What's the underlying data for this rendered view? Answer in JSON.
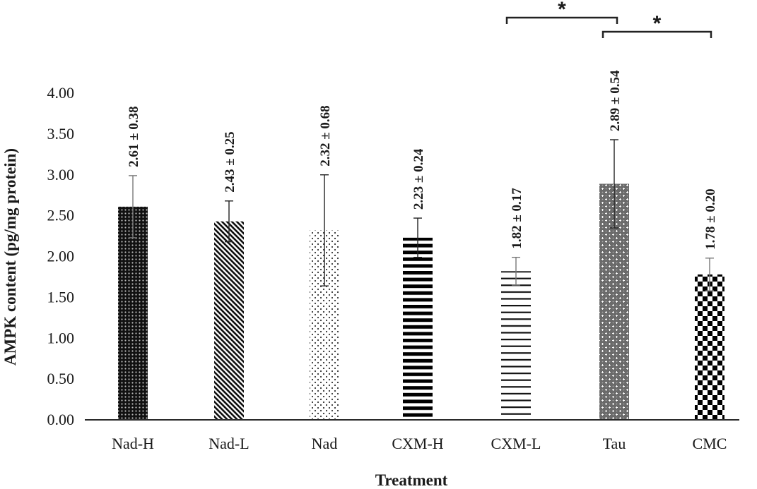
{
  "chart_data": {
    "type": "bar",
    "title": "",
    "xlabel": "Treatment",
    "ylabel": "AMPK content (pg/mg protein)",
    "ylim": [
      0,
      4
    ],
    "yticks": [
      "0.00",
      "0.50",
      "1.00",
      "1.50",
      "2.00",
      "2.50",
      "3.00",
      "3.50",
      "4.00"
    ],
    "ytick_values": [
      0,
      0.5,
      1,
      1.5,
      2,
      2.5,
      3,
      3.5,
      4
    ],
    "grid": false,
    "legend": "none",
    "categories": [
      "Nad-H",
      "Nad-L",
      "Nad",
      "CXM-H",
      "CXM-L",
      "Tau",
      "CMC"
    ],
    "values": [
      2.61,
      2.43,
      2.32,
      2.23,
      1.82,
      2.89,
      1.78
    ],
    "errors": [
      0.38,
      0.25,
      0.68,
      0.24,
      0.17,
      0.54,
      0.2
    ],
    "data_labels": [
      "2.61 ± 0.38",
      "2.43 ± 0.25",
      "2.32 ± 0.68",
      "2.23 ± 0.24",
      "1.82 ± 0.17",
      "2.89 ± 0.54",
      "1.78 ± 0.20"
    ],
    "patterns": [
      "dense-dots-dark",
      "diagonal-stripes",
      "sparse-dots",
      "thick-horizontal-lines",
      "thin-horizontal-lines",
      "gray-dotted-stars",
      "checkerboard"
    ],
    "significance": [
      {
        "from": "CXM-L",
        "to": "Tau",
        "label": "*"
      },
      {
        "from": "Tau",
        "to": "CMC",
        "label": "*"
      }
    ]
  }
}
